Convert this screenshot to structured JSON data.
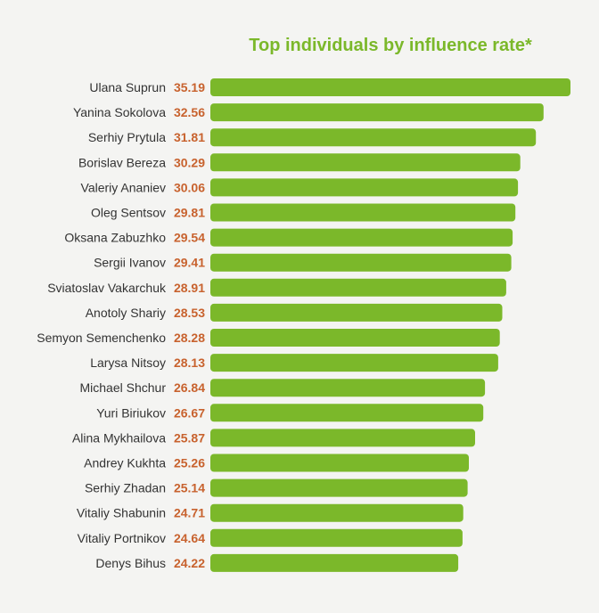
{
  "chart_data": {
    "type": "bar",
    "orientation": "horizontal",
    "title": "Top individuals by influence rate*",
    "categories": [
      "Ulana Suprun",
      "Yanina Sokolova",
      "Serhiy Prytula",
      "Borislav Bereza",
      "Valeriy Ananiev",
      "Oleg Sentsov",
      "Oksana Zabuzhko",
      "Sergii Ivanov",
      "Sviatoslav Vakarchuk",
      "Anotoly Shariy",
      "Semyon Semenchenko",
      "Larysa Nitsoy",
      "Michael Shchur",
      "Yuri Biriukov",
      "Alina Mykhailova",
      "Andrey Kukhta",
      "Serhiy Zhadan",
      "Vitaliy Shabunin",
      "Vitaliy Portnikov",
      "Denys Bihus"
    ],
    "values": [
      35.19,
      32.56,
      31.81,
      30.29,
      30.06,
      29.81,
      29.54,
      29.41,
      28.91,
      28.53,
      28.28,
      28.13,
      26.84,
      26.67,
      25.87,
      25.26,
      25.14,
      24.71,
      24.64,
      24.22
    ],
    "value_labels": [
      "35.19",
      "32.56",
      "31.81",
      "30.29",
      "30.06",
      "29.81",
      "29.54",
      "29.41",
      "28.91",
      "28.53",
      "28.28",
      "28.13",
      "26.84",
      "26.67",
      "25.87",
      "25.26",
      "25.14",
      "24.71",
      "24.64",
      "24.22"
    ],
    "legend": "none",
    "grid": false,
    "colors": {
      "bar": "#7bb82a",
      "value_text": "#c8622e",
      "label_text": "#333333",
      "title": "#7bb82a",
      "background": "#f4f4f2"
    }
  }
}
